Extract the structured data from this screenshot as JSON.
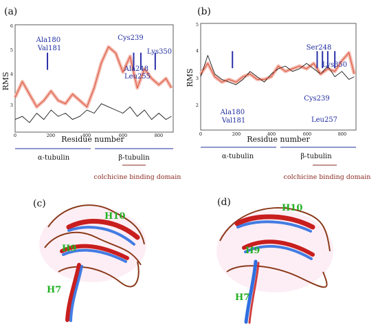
{
  "panels": {
    "a": {
      "letter": "(a)",
      "xlabel": "Residue number",
      "ylabel": "RMS",
      "xticks": [
        "0",
        "200",
        "400",
        "600",
        "800"
      ],
      "yticks": [
        "3",
        "4",
        "5",
        "6"
      ],
      "residue_labels": [
        {
          "lines": [
            "Ala180",
            "Val181"
          ]
        },
        {
          "lines": [
            "Cys239"
          ]
        },
        {
          "lines": [
            "Ala248",
            "Leu255"
          ]
        },
        {
          "lines": [
            "Lys350"
          ]
        }
      ],
      "domains": {
        "alpha": "α-tubulin",
        "beta": "β-tubulin"
      },
      "cbd": "colchicine binding domain"
    },
    "b": {
      "letter": "(b)",
      "xlabel": "Residue number",
      "ylabel": "RMS",
      "xticks": [
        "0",
        "200",
        "400",
        "600",
        "800"
      ],
      "yticks": [
        "2",
        "3",
        "4",
        "5"
      ],
      "residue_labels": [
        {
          "lines": [
            "Ala180",
            "Val181"
          ]
        },
        {
          "lines": [
            "Ser248"
          ]
        },
        {
          "lines": [
            "Lys350"
          ]
        },
        {
          "lines": [
            "Cys239"
          ]
        },
        {
          "lines": [
            "Leu257"
          ]
        }
      ],
      "domains": {
        "alpha": "α-tubulin",
        "beta": "β-tubulin"
      },
      "cbd": "colchicine binding domain"
    },
    "c": {
      "letter": "(c)",
      "helices": [
        "H10",
        "H9",
        "H7"
      ]
    },
    "d": {
      "letter": "(d)",
      "helices": [
        "H10",
        "H9",
        "H7"
      ]
    }
  },
  "colors": {
    "series_black": "#1a1a1a",
    "series_red": "#d9452b",
    "series_red_band": "#f2b8ad",
    "residue_marker": "#2a2fa8",
    "domain_line": "#1f2c9e",
    "cbd_line": "#8a2b22",
    "ribbon_red": "#c81e1e",
    "ribbon_blue": "#2f6fe0",
    "ribbon_brown": "#8b3a1a",
    "helix_label": "#23b023"
  },
  "chart_data": [
    {
      "type": "line",
      "title": "",
      "xlabel": "Residue number",
      "ylabel": "RMS",
      "xlim": [
        0,
        880
      ],
      "ylim": [
        2.8,
        6.2
      ],
      "grid": false,
      "series": [
        {
          "values_x": [
            0,
            40,
            80,
            120,
            160,
            200,
            240,
            280,
            320,
            360,
            400,
            440,
            480,
            520,
            560,
            600,
            640,
            680,
            720,
            760,
            800,
            840,
            870
          ],
          "values_y": [
            3.2,
            3.3,
            3.1,
            3.4,
            3.2,
            3.5,
            3.3,
            3.4,
            3.2,
            3.3,
            3.5,
            3.4,
            3.7,
            3.6,
            3.5,
            3.4,
            3.6,
            3.3,
            3.5,
            3.2,
            3.4,
            3.2,
            3.3
          ]
        },
        {
          "values_x": [
            0,
            40,
            80,
            120,
            160,
            200,
            240,
            280,
            320,
            360,
            400,
            440,
            480,
            520,
            560,
            600,
            640,
            680,
            720,
            760,
            800,
            840,
            870
          ],
          "values_y": [
            3.9,
            4.4,
            4.0,
            3.6,
            3.8,
            4.1,
            3.8,
            3.7,
            4.0,
            3.8,
            3.6,
            4.2,
            5.0,
            5.5,
            5.3,
            4.7,
            5.2,
            4.2,
            4.8,
            4.5,
            4.3,
            4.5,
            4.2
          ]
        }
      ],
      "markers": [
        180,
        660,
        700,
        780
      ]
    },
    {
      "type": "line",
      "title": "",
      "xlabel": "Residue number",
      "ylabel": "RMS",
      "xlim": [
        0,
        880
      ],
      "ylim": [
        1.0,
        5.0
      ],
      "grid": false,
      "series": [
        {
          "values_x": [
            0,
            40,
            80,
            120,
            160,
            200,
            240,
            280,
            320,
            360,
            400,
            440,
            480,
            520,
            560,
            600,
            640,
            680,
            720,
            760,
            800,
            840,
            870
          ],
          "values_y": [
            3.0,
            3.8,
            3.1,
            2.9,
            2.8,
            2.7,
            2.9,
            3.2,
            3.0,
            2.8,
            3.1,
            3.3,
            3.4,
            3.2,
            3.3,
            3.5,
            3.3,
            3.1,
            3.4,
            3.0,
            3.2,
            2.9,
            3.0
          ]
        },
        {
          "values_x": [
            0,
            40,
            80,
            120,
            160,
            200,
            240,
            280,
            320,
            360,
            400,
            440,
            480,
            520,
            560,
            600,
            640,
            680,
            720,
            760,
            800,
            840,
            870
          ],
          "values_y": [
            3.1,
            3.5,
            3.0,
            2.8,
            2.9,
            2.8,
            3.0,
            3.1,
            2.9,
            2.9,
            3.0,
            3.4,
            3.2,
            3.3,
            3.4,
            3.3,
            3.5,
            3.1,
            3.3,
            3.2,
            3.6,
            3.9,
            3.1
          ]
        }
      ],
      "markers": [
        180,
        660,
        720,
        760,
        690
      ]
    }
  ]
}
